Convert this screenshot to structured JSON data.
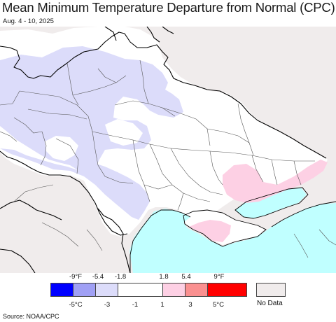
{
  "title": "Mean Minimum Temperature Departure from Normal (CPC)",
  "subtitle": "Aug. 4 - 10, 2025",
  "legend": {
    "f_labels": [
      "-9°F",
      "-5.4",
      "-1.8",
      "1.8",
      "5.4",
      "9°F"
    ],
    "c_labels": [
      "-5°C",
      "-3",
      "-1",
      "1",
      "3",
      "5°C"
    ],
    "colors": [
      "#0000ff",
      "#a0a0f5",
      "#dcdcfa",
      "#ffffff",
      "#fdd0e4",
      "#fa9090",
      "#ff0000"
    ],
    "no_data_label": "No Data",
    "no_data_color": "#f0ecec"
  },
  "map": {
    "background_color": "#f0ecec",
    "sea_color": "#c0ffff",
    "border_color": "#000000",
    "region_line_color": "#555555"
  },
  "source": "Source: NOAA/CPC"
}
